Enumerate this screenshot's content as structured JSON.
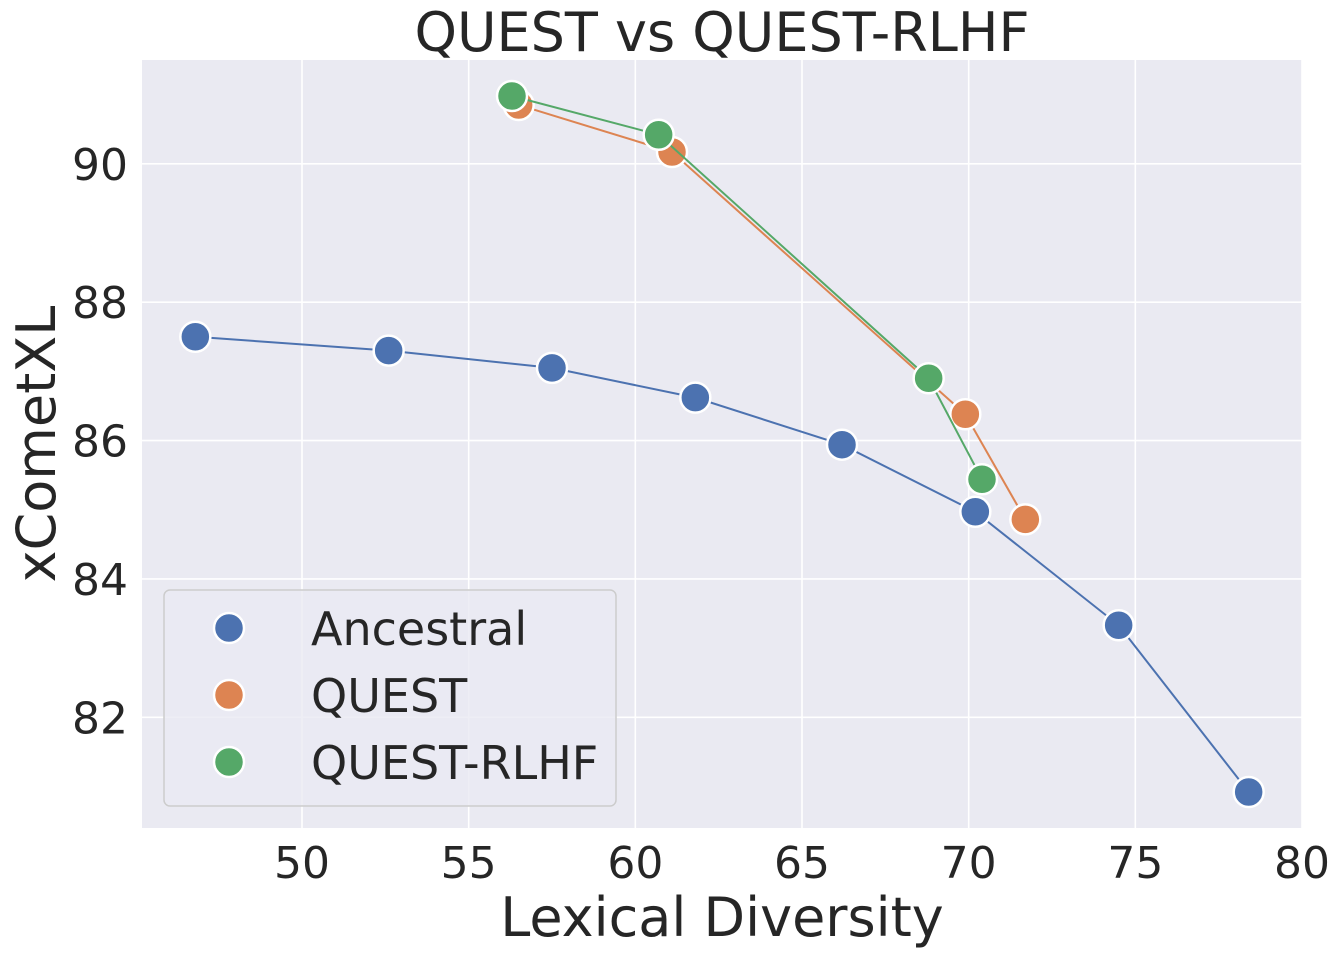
{
  "chart_data": {
    "type": "line",
    "title": "QUEST vs QUEST-RLHF",
    "xlabel": "Lexical Diversity",
    "ylabel": "xCometXL",
    "xlim": [
      45.2,
      80.0
    ],
    "ylim": [
      80.4,
      91.5
    ],
    "xticks": [
      50,
      55,
      60,
      65,
      70,
      75,
      80
    ],
    "yticks": [
      82,
      84,
      86,
      88,
      90
    ],
    "grid": true,
    "legend_position": "lower-left",
    "series": [
      {
        "name": "Ancestral",
        "color": "#4c72b0",
        "points": [
          {
            "x": 46.8,
            "y": 87.5
          },
          {
            "x": 52.6,
            "y": 87.3
          },
          {
            "x": 57.5,
            "y": 87.05
          },
          {
            "x": 61.8,
            "y": 86.62
          },
          {
            "x": 66.2,
            "y": 85.94
          },
          {
            "x": 70.2,
            "y": 84.97
          },
          {
            "x": 74.5,
            "y": 83.33
          },
          {
            "x": 78.4,
            "y": 80.92
          }
        ]
      },
      {
        "name": "QUEST",
        "color": "#dd8452",
        "points": [
          {
            "x": 56.5,
            "y": 90.85
          },
          {
            "x": 61.1,
            "y": 90.17
          },
          {
            "x": 69.9,
            "y": 86.38
          },
          {
            "x": 71.7,
            "y": 84.86
          }
        ]
      },
      {
        "name": "QUEST-RLHF",
        "color": "#55a868",
        "points": [
          {
            "x": 56.3,
            "y": 90.98
          },
          {
            "x": 60.7,
            "y": 90.42
          },
          {
            "x": 68.8,
            "y": 86.9
          },
          {
            "x": 70.4,
            "y": 85.44
          }
        ]
      }
    ]
  }
}
